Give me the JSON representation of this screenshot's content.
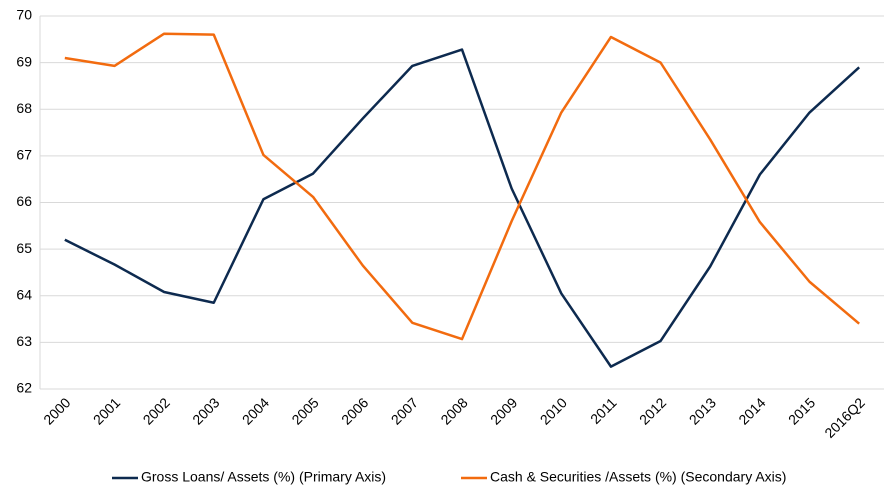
{
  "chart_data": {
    "type": "line",
    "categories": [
      "2000",
      "2001",
      "2002",
      "2003",
      "2004",
      "2005",
      "2006",
      "2007",
      "2008",
      "2009",
      "2010",
      "2011",
      "2012",
      "2013",
      "2014",
      "2015",
      "2016Q2"
    ],
    "series": [
      {
        "name": "Gross Loans/ Assets (%) (Primary Axis)",
        "color": "#0d2a4f",
        "values": [
          65.2,
          64.67,
          64.08,
          63.85,
          66.07,
          66.62,
          67.8,
          68.93,
          69.28,
          66.3,
          64.05,
          62.48,
          63.03,
          64.63,
          66.6,
          67.93,
          68.9
        ]
      },
      {
        "name": "Cash & Securities /Assets (%) (Secondary Axis)",
        "color": "#f26b0f",
        "values": [
          69.1,
          68.93,
          69.62,
          69.6,
          67.02,
          66.12,
          64.65,
          63.42,
          63.07,
          65.6,
          67.93,
          69.55,
          69.0,
          67.35,
          65.58,
          64.3,
          63.4
        ]
      }
    ],
    "ylim": [
      62,
      70
    ],
    "yticks": [
      62,
      63,
      64,
      65,
      66,
      67,
      68,
      69,
      70
    ],
    "grid": true
  }
}
